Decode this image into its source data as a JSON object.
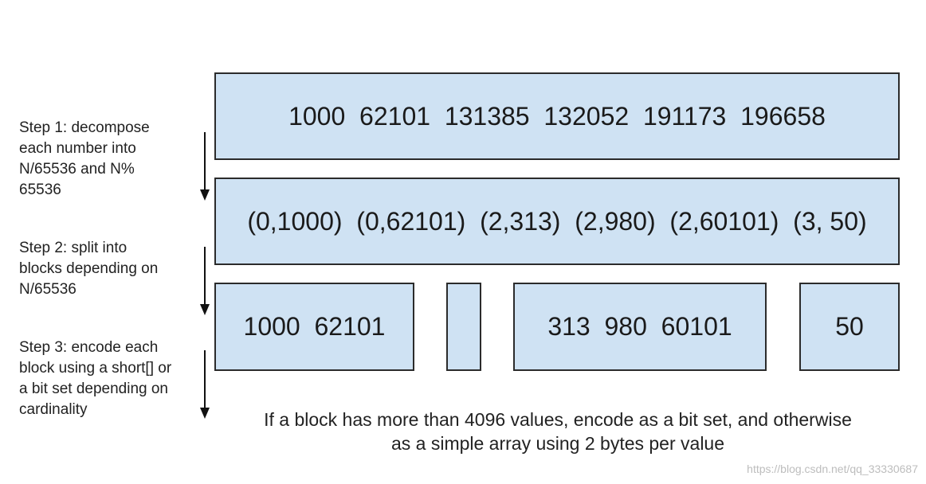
{
  "rows": {
    "input_numbers": "1000  62101  131385  132052  191173  196658",
    "decomposed_pairs": "(0,1000)  (0,62101)  (2,313)  (2,980)  (2,60101)  (3, 50)",
    "blocks": [
      {
        "label": "1000  62101"
      },
      {
        "label": ""
      },
      {
        "label": "313  980  60101"
      },
      {
        "label": "50"
      }
    ]
  },
  "steps": [
    {
      "text": "Step 1: decompose\neach number into\nN/65536 and N%\n65536"
    },
    {
      "text": "Step 2: split into\nblocks depending on\nN/65536"
    },
    {
      "text": "Step 3: encode each\nblock using a short[] or\na bit set depending on\ncardinality"
    }
  ],
  "caption": {
    "line1": "If a block has more than 4096 values, encode as a bit set, and otherwise",
    "line2": "as a simple array using 2 bytes per value"
  },
  "watermark": "https://blog.csdn.net/qq_33330687",
  "colors": {
    "box_fill": "#cfe2f3",
    "box_border": "#2b2b2b",
    "text": "#222222"
  }
}
